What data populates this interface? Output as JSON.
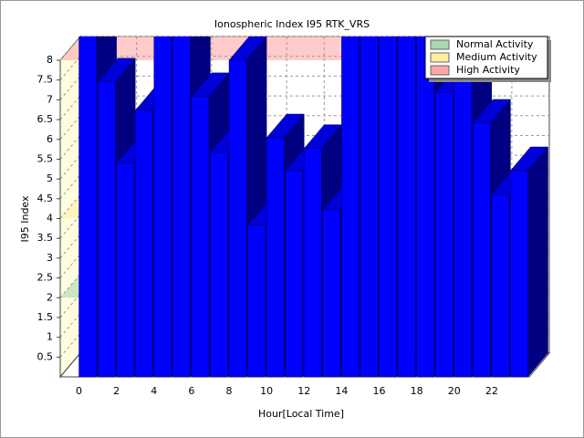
{
  "chart_data": {
    "type": "bar3d",
    "title": "Ionospheric Index I95 RTK_VRS",
    "x_label": "Hour[Local Time]",
    "y_label": "I95 Index",
    "x": [
      0,
      1,
      2,
      3,
      4,
      5,
      6,
      7,
      8,
      9,
      10,
      11,
      12,
      13,
      14,
      15,
      16,
      17,
      18,
      19,
      20,
      21,
      22,
      23
    ],
    "values": [
      9,
      7.45,
      5.4,
      6.73,
      9,
      9,
      7.08,
      5.67,
      8,
      3.83,
      6.04,
      5.21,
      5.77,
      4.22,
      9,
      9,
      9,
      9,
      9,
      7.19,
      7.7,
      6.41,
      4.61,
      5.21
    ],
    "color": "#0000ff",
    "xlim": [
      -1,
      24
    ],
    "xticks": [
      0,
      2,
      4,
      6,
      8,
      10,
      12,
      14,
      16,
      18,
      20,
      22
    ],
    "ylim": [
      0,
      8
    ],
    "yticks": [
      0.5,
      1,
      1.5,
      2,
      2.5,
      3,
      3.5,
      4,
      4.5,
      5,
      5.5,
      6,
      6.5,
      7,
      7.5,
      8
    ],
    "grid": true,
    "bands": [
      {
        "name": "Normal Activity",
        "color": "#a8d8b0",
        "value": 2
      },
      {
        "name": "Medium Activity",
        "color": "#fff0a0",
        "value": 4
      },
      {
        "name": "High Activity",
        "color": "#ffa8a8",
        "value": 8
      }
    ],
    "legend": "top-right"
  }
}
